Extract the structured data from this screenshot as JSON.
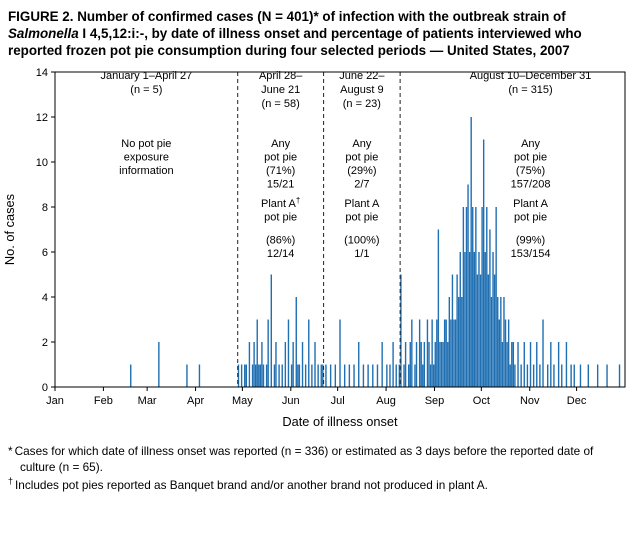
{
  "title": {
    "part1": "FIGURE 2. Number of confirmed cases (N = 401)* of infection with the outbreak strain of ",
    "italic": "Salmonella",
    "part2": " I 4,5,12:i:-, by date of illness onset and percentage of patients interviewed who reported frozen pot pie consumption during four selected periods — United States, 2007"
  },
  "footnotes": [
    {
      "marker": "*",
      "text": "Cases for which date of illness onset was reported (n = 336) or estimated as 3 days before the reported date of culture (n = 65)."
    },
    {
      "marker": "†",
      "text": "Includes pot pies reported as Banquet brand and/or another brand not produced in plant A."
    }
  ],
  "chart_data": {
    "type": "bar",
    "xlabel": "Date of illness onset",
    "ylabel": "No. of cases",
    "ylim": [
      0,
      14
    ],
    "yticks": [
      0,
      2,
      4,
      6,
      8,
      10,
      12,
      14
    ],
    "month_labels": [
      "Jan",
      "Feb",
      "Mar",
      "Apr",
      "May",
      "Jun",
      "Jul",
      "Aug",
      "Sep",
      "Oct",
      "Nov",
      "Dec"
    ],
    "bar_color": "#1f6fb2",
    "grid": false,
    "total_n": 401,
    "year": 2007,
    "periods": [
      {
        "start": "01-01",
        "end": "04-27",
        "label_lines": [
          "January 1–April 27",
          "(n = 5)"
        ],
        "note_blocks": [
          [
            "No pot pie",
            "exposure",
            "information"
          ]
        ]
      },
      {
        "start": "04-28",
        "end": "06-21",
        "label_lines": [
          "April 28–",
          "June 21",
          "(n = 58)"
        ],
        "note_blocks": [
          [
            "Any",
            "pot pie",
            "(71%)",
            "15/21"
          ],
          [
            "Plant A†",
            "pot pie",
            "",
            "(86%)",
            "12/14"
          ]
        ]
      },
      {
        "start": "06-22",
        "end": "08-09",
        "label_lines": [
          "June 22–",
          "August 9",
          "(n = 23)"
        ],
        "note_blocks": [
          [
            "Any",
            "pot pie",
            "(29%)",
            "2/7"
          ],
          [
            "Plant A",
            "pot pie",
            "",
            "(100%)",
            "1/1"
          ]
        ]
      },
      {
        "start": "08-10",
        "end": "12-31",
        "label_lines": [
          "August 10–December 31",
          "(n = 315)"
        ],
        "note_blocks": [
          [
            "Any",
            "pot pie",
            "(75%)",
            "157/208"
          ],
          [
            "Plant A",
            "pot pie",
            "",
            "(99%)",
            "153/154"
          ]
        ]
      }
    ],
    "daily_counts": {
      "02-18": 1,
      "03-08": 2,
      "03-26": 1,
      "04-03": 1,
      "04-28": 1,
      "04-30": 1,
      "05-02": 1,
      "05-03": 1,
      "05-05": 2,
      "05-07": 1,
      "05-08": 2,
      "05-09": 1,
      "05-10": 3,
      "05-11": 1,
      "05-12": 1,
      "05-13": 2,
      "05-14": 1,
      "05-16": 1,
      "05-17": 3,
      "05-19": 5,
      "05-21": 1,
      "05-22": 2,
      "05-24": 1,
      "05-26": 1,
      "05-28": 2,
      "05-30": 3,
      "06-01": 1,
      "06-02": 2,
      "06-04": 4,
      "06-05": 1,
      "06-06": 1,
      "06-08": 2,
      "06-10": 1,
      "06-12": 3,
      "06-14": 1,
      "06-16": 2,
      "06-18": 1,
      "06-20": 1,
      "06-21": 1,
      "06-23": 1,
      "06-26": 1,
      "06-29": 1,
      "07-02": 3,
      "07-05": 1,
      "07-08": 1,
      "07-11": 1,
      "07-14": 2,
      "07-17": 1,
      "07-20": 1,
      "07-23": 1,
      "07-26": 1,
      "07-29": 2,
      "08-01": 1,
      "08-03": 1,
      "08-05": 2,
      "08-07": 1,
      "08-09": 1,
      "08-10": 5,
      "08-12": 1,
      "08-13": 2,
      "08-15": 1,
      "08-16": 2,
      "08-17": 3,
      "08-19": 1,
      "08-20": 2,
      "08-22": 3,
      "08-23": 2,
      "08-24": 1,
      "08-25": 2,
      "08-27": 3,
      "08-28": 2,
      "08-29": 1,
      "08-30": 3,
      "08-31": 1,
      "09-01": 2,
      "09-02": 3,
      "09-03": 7,
      "09-04": 2,
      "09-05": 2,
      "09-06": 2,
      "09-07": 3,
      "09-08": 3,
      "09-09": 2,
      "09-10": 4,
      "09-11": 3,
      "09-12": 5,
      "09-13": 3,
      "09-14": 3,
      "09-15": 5,
      "09-16": 4,
      "09-17": 6,
      "09-18": 4,
      "09-19": 8,
      "09-20": 6,
      "09-21": 8,
      "09-22": 9,
      "09-23": 6,
      "09-24": 12,
      "09-25": 8,
      "09-26": 6,
      "09-27": 8,
      "09-28": 5,
      "09-29": 6,
      "09-30": 5,
      "10-01": 8,
      "10-02": 11,
      "10-03": 6,
      "10-04": 8,
      "10-05": 5,
      "10-06": 7,
      "10-07": 4,
      "10-08": 6,
      "10-09": 5,
      "10-10": 8,
      "10-11": 4,
      "10-12": 3,
      "10-13": 4,
      "10-14": 2,
      "10-15": 4,
      "10-16": 3,
      "10-17": 2,
      "10-18": 3,
      "10-19": 1,
      "10-20": 2,
      "10-21": 2,
      "10-22": 1,
      "10-24": 2,
      "10-26": 1,
      "10-28": 2,
      "10-30": 1,
      "11-01": 2,
      "11-03": 1,
      "11-05": 2,
      "11-07": 1,
      "11-09": 3,
      "11-12": 1,
      "11-14": 2,
      "11-16": 1,
      "11-19": 2,
      "11-21": 1,
      "11-24": 2,
      "11-27": 1,
      "11-29": 1,
      "12-03": 1,
      "12-08": 1,
      "12-14": 1,
      "12-20": 1,
      "12-28": 1
    }
  }
}
